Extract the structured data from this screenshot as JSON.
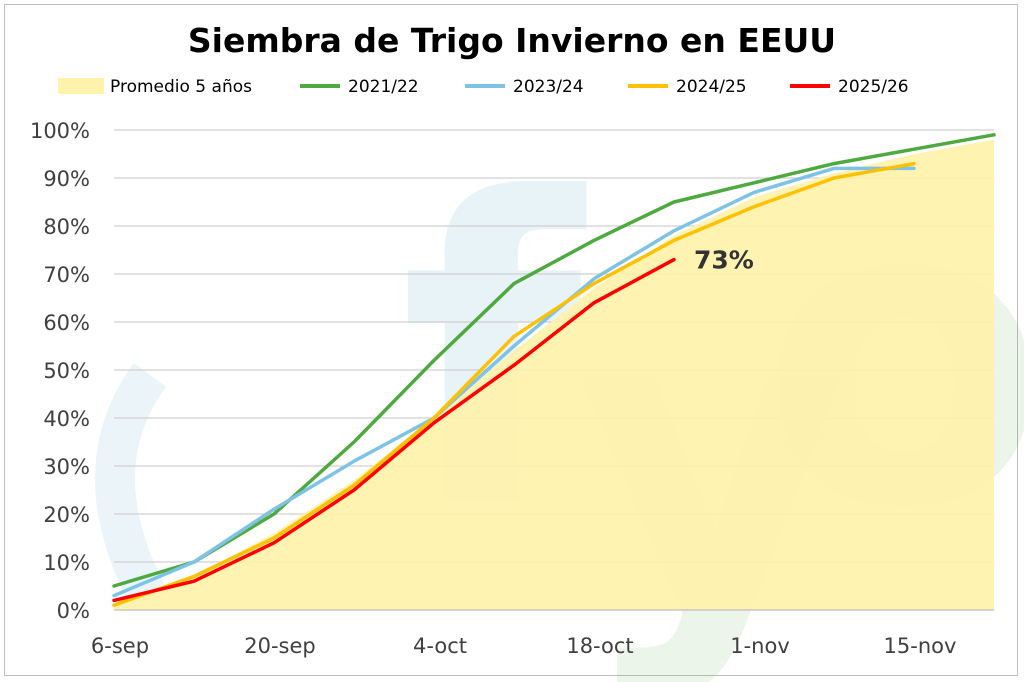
{
  "chart_data": {
    "type": "line",
    "title": "Siembra de Trigo Invierno en EEUU",
    "xlabel": "",
    "ylabel": "",
    "x_ticks": [
      "6-sep",
      "20-sep",
      "4-oct",
      "18-oct",
      "1-nov",
      "15-nov"
    ],
    "y_ticks": [
      "0%",
      "10%",
      "20%",
      "30%",
      "40%",
      "50%",
      "60%",
      "70%",
      "80%",
      "90%",
      "100%"
    ],
    "ylim": [
      0,
      100
    ],
    "x_unit": "weeks since 6-sep",
    "grid": "horizontal",
    "legend_position": "top",
    "watermark": "fyo",
    "series": [
      {
        "name": "Promedio 5 años",
        "kind": "area",
        "color": "#FFF2AA",
        "x": [
          0,
          1,
          2,
          3,
          4,
          5,
          6,
          7,
          8,
          9,
          10,
          11
        ],
        "values": [
          1,
          7,
          16,
          27,
          40,
          54,
          67,
          78,
          86,
          91,
          95,
          98
        ]
      },
      {
        "name": "2021/22",
        "kind": "line",
        "color": "#4EA93F",
        "x": [
          0,
          1,
          2,
          3,
          4,
          5,
          6,
          7,
          8,
          9,
          10,
          11
        ],
        "values": [
          5,
          10,
          20,
          35,
          52,
          68,
          77,
          85,
          89,
          93,
          96,
          99
        ]
      },
      {
        "name": "2023/24",
        "kind": "line",
        "color": "#7EC3E6",
        "x": [
          0,
          1,
          2,
          3,
          4,
          5,
          6,
          7,
          8,
          9,
          10
        ],
        "values": [
          3,
          10,
          21,
          31,
          40,
          55,
          69,
          79,
          87,
          92,
          92
        ]
      },
      {
        "name": "2024/25",
        "kind": "line",
        "color": "#FFC000",
        "x": [
          0,
          1,
          2,
          3,
          4,
          5,
          6,
          7,
          8,
          9,
          10
        ],
        "values": [
          1,
          7,
          15,
          26,
          40,
          57,
          68,
          77,
          84,
          90,
          93
        ]
      },
      {
        "name": "2025/26",
        "kind": "line",
        "color": "#FF0000",
        "x": [
          0,
          1,
          2,
          3,
          4,
          5,
          6,
          7
        ],
        "values": [
          2,
          6,
          14,
          25,
          39,
          51,
          64,
          73
        ]
      }
    ],
    "annotations": [
      {
        "text": "73%",
        "series": "2025/26",
        "x": 7,
        "y": 73
      }
    ]
  }
}
